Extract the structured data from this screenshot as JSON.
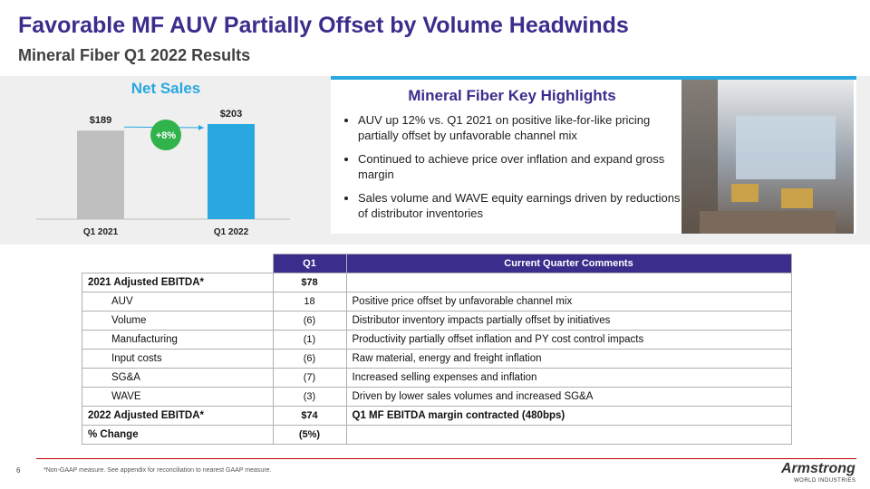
{
  "header": {
    "title": "Favorable MF AUV Partially Offset by Volume Headwinds",
    "subtitle": "Mineral Fiber Q1 2022 Results"
  },
  "chart_data": {
    "type": "bar",
    "title": "Net Sales",
    "categories": [
      "Q1 2021",
      "Q1 2022"
    ],
    "values": [
      189,
      203
    ],
    "value_labels": [
      "$189",
      "$203"
    ],
    "colors": [
      "#bfbfbf",
      "#29a8e0"
    ],
    "annotation": "+8%"
  },
  "highlights": {
    "title": "Mineral Fiber Key Highlights",
    "items": [
      "AUV up 12% vs. Q1 2021 on positive like-for-like pricing partially offset by unfavorable channel mix",
      "Continued to achieve price over inflation and expand gross margin",
      "Sales volume and WAVE equity earnings driven by reductions of distributor inventories"
    ]
  },
  "table": {
    "columns": [
      "Q1",
      "Current Quarter Comments"
    ],
    "rows": [
      [
        "2021 Adjusted EBITDA*",
        "$78",
        ""
      ],
      [
        "AUV",
        "18",
        "Positive price offset by unfavorable channel mix"
      ],
      [
        "Volume",
        "(6)",
        "Distributor inventory impacts partially offset by initiatives"
      ],
      [
        "Manufacturing",
        "(1)",
        "Productivity partially offset inflation and PY cost control impacts"
      ],
      [
        "Input costs",
        "(6)",
        "Raw material, energy and freight inflation"
      ],
      [
        "SG&A",
        "(7)",
        "Increased selling expenses and inflation"
      ],
      [
        "WAVE",
        "(3)",
        "Driven by lower sales volumes and increased SG&A"
      ],
      [
        "2022 Adjusted EBITDA*",
        "$74",
        "Q1 MF EBITDA margin contracted (480bps)"
      ],
      [
        "% Change",
        "(5%)",
        ""
      ]
    ]
  },
  "footer": {
    "page": "6",
    "note": "*Non-GAAP measure. See appendix for reconciliation to nearest GAAP measure.",
    "logo": "Armstrong",
    "logo_sub": "WORLD INDUSTRIES"
  }
}
